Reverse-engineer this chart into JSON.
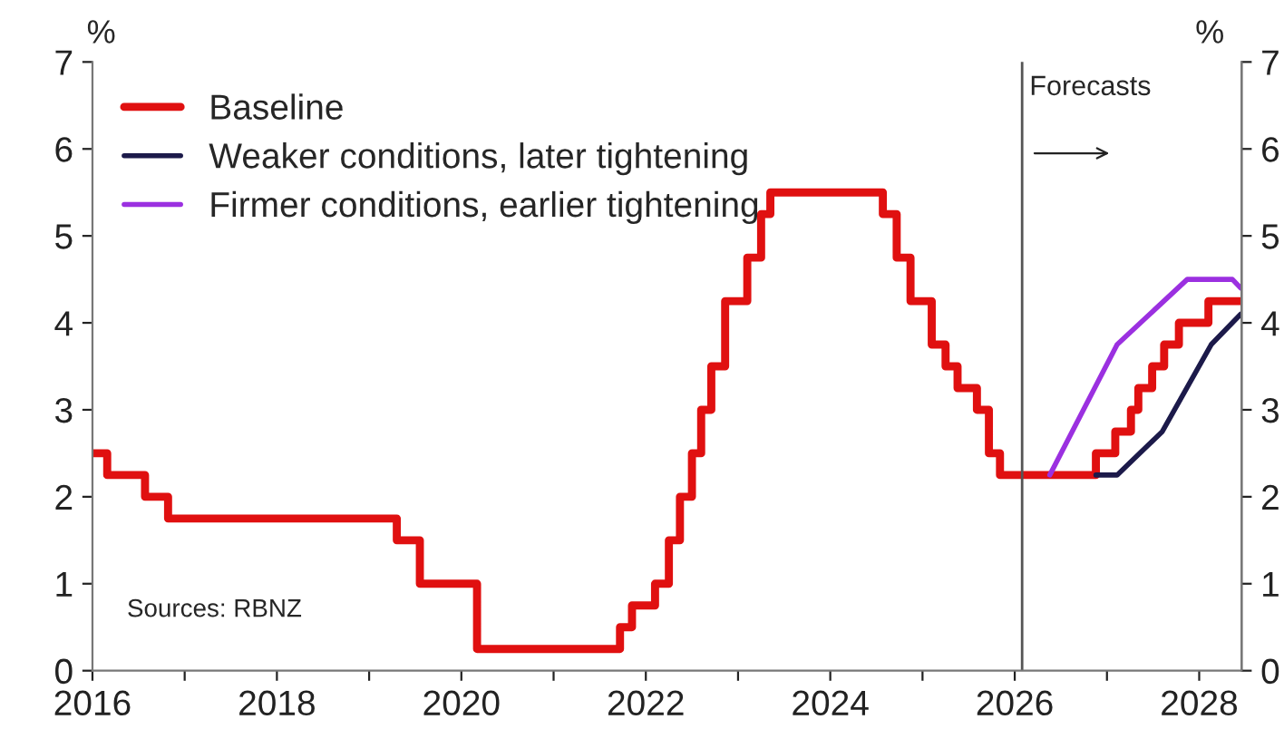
{
  "chart_data": {
    "type": "line",
    "ylabel": "%",
    "y2label": "%",
    "xlim": [
      2016,
      2028.46
    ],
    "ylim": [
      0,
      7
    ],
    "y2lim": [
      0,
      7
    ],
    "xticks": [
      2016,
      {
        "value": 2017,
        "label": null
      },
      2018,
      {
        "value": 2019,
        "label": null
      },
      2020,
      {
        "value": 2021,
        "label": null
      },
      2022,
      {
        "value": 2023,
        "label": null
      },
      2024,
      {
        "value": 2025,
        "label": null
      },
      2026,
      {
        "value": 2027,
        "label": null
      },
      2028
    ],
    "yticks": [
      0,
      1,
      2,
      3,
      4,
      5,
      6,
      7
    ],
    "y2ticks": [
      0,
      1,
      2,
      3,
      4,
      5,
      6,
      7
    ],
    "grid": false,
    "legend": "top left",
    "series": [
      {
        "name": "Baseline",
        "type": "step",
        "color": "#e01010",
        "x": [
          2016,
          2016.16,
          2016.57,
          2016.82,
          2019.3,
          2019.55,
          2020.17,
          2021.72,
          2021.85,
          2022.1,
          2022.25,
          2022.37,
          2022.5,
          2022.6,
          2022.71,
          2022.86,
          2023.1,
          2023.25,
          2023.35,
          2024.57,
          2024.72,
          2024.87,
          2025.1,
          2025.25,
          2025.38,
          2025.59,
          2025.72,
          2025.84,
          2026.88,
          2027.09,
          2027.26,
          2027.34,
          2027.49,
          2027.62,
          2027.78,
          2028.1,
          2028.46
        ],
        "values": [
          2.5,
          2.25,
          2.0,
          1.75,
          1.5,
          1.0,
          0.25,
          0.5,
          0.75,
          1.0,
          1.5,
          2.0,
          2.5,
          3.0,
          3.5,
          4.25,
          4.75,
          5.25,
          5.5,
          5.25,
          4.75,
          4.25,
          3.75,
          3.5,
          3.25,
          3.0,
          2.5,
          2.25,
          2.5,
          2.75,
          3.0,
          3.25,
          3.5,
          3.75,
          4.0,
          4.25,
          4.25
        ]
      },
      {
        "name": "Weaker conditions, later tightening",
        "type": "line",
        "color": "#1c1a4a",
        "x": [
          2026.88,
          2027.11,
          2027.6,
          2028.13,
          2028.45
        ],
        "values": [
          2.25,
          2.25,
          2.75,
          3.75,
          4.1
        ]
      },
      {
        "name": "Firmer conditions, earlier tightening",
        "type": "line",
        "color": "#9b30e0",
        "x": [
          2026.38,
          2027.11,
          2027.87,
          2028.36,
          2028.45
        ],
        "values": [
          2.25,
          3.75,
          4.5,
          4.5,
          4.4
        ]
      }
    ],
    "ref_lines": [
      {
        "axis": "x",
        "value": 2026.08,
        "label": "Forecasts",
        "color": "#555555"
      }
    ],
    "annotations": [
      "Sources: RBNZ"
    ]
  }
}
